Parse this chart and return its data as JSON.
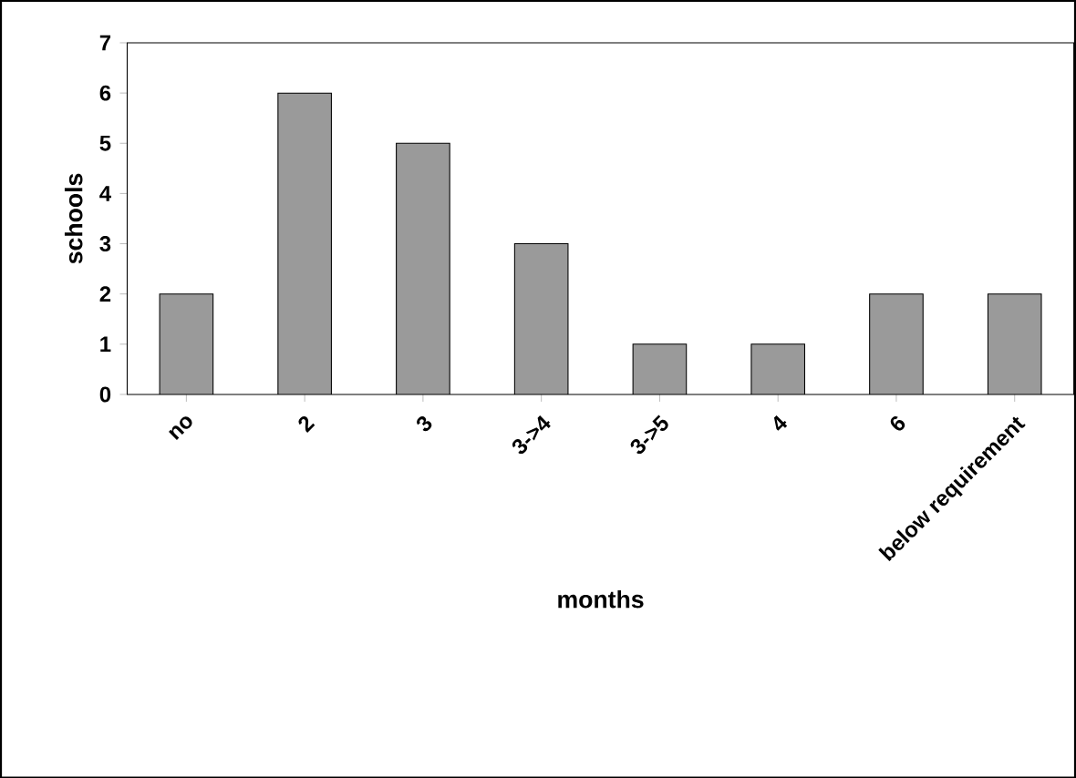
{
  "chart_data": {
    "type": "bar",
    "xlabel": "months",
    "ylabel": "schools",
    "categories": [
      "no",
      "2",
      "3",
      "3->4",
      "3->5",
      "4",
      "6",
      "below requirement"
    ],
    "values": [
      2,
      6,
      5,
      3,
      1,
      1,
      2,
      2
    ],
    "color": "#9a9a9a",
    "ylim": [
      0,
      7
    ],
    "yticks": [
      0,
      1,
      2,
      3,
      4,
      5,
      6,
      7
    ],
    "grid": false
  }
}
